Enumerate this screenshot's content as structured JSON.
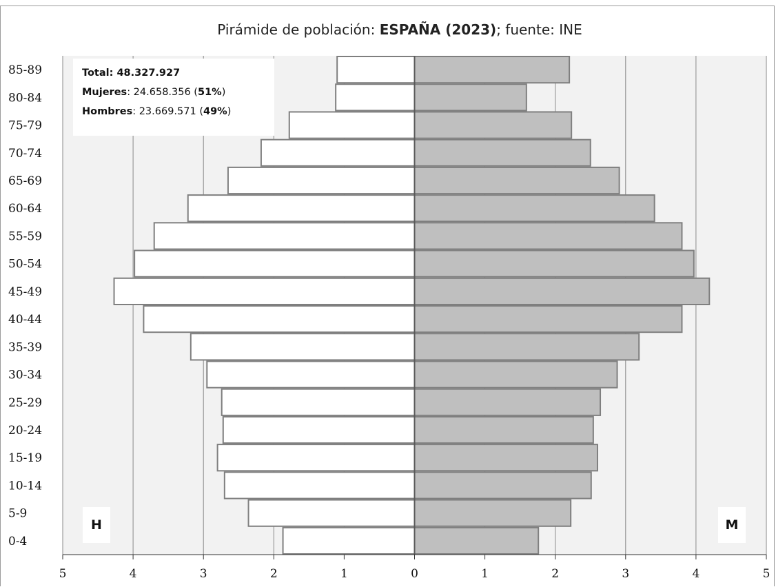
{
  "chart_data": {
    "type": "bar",
    "title": {
      "prefix": "Pirámide de población: ",
      "bold": "ESPAÑA (2023)",
      "suffix": "; fuente: INE"
    },
    "categories": [
      "0-4",
      "5-9",
      "10-14",
      "15-19",
      "20-24",
      "25-29",
      "30-34",
      "35-39",
      "40-44",
      "45-49",
      "50-54",
      "55-59",
      "60-64",
      "65-69",
      "70-74",
      "75-79",
      "80-84",
      "85-89"
    ],
    "series": [
      {
        "name": "H",
        "color": "#ffffff",
        "values": [
          1.87,
          2.36,
          2.7,
          2.8,
          2.72,
          2.74,
          2.95,
          3.18,
          3.85,
          4.27,
          3.98,
          3.7,
          3.22,
          2.65,
          2.18,
          1.78,
          1.12,
          1.1
        ]
      },
      {
        "name": "M",
        "color": "#bfbfbf",
        "values": [
          1.76,
          2.22,
          2.51,
          2.6,
          2.54,
          2.64,
          2.88,
          3.19,
          3.8,
          4.19,
          3.97,
          3.8,
          3.41,
          2.91,
          2.5,
          2.23,
          1.59,
          2.2
        ]
      }
    ],
    "x_ticks": [
      "5",
      "4",
      "3",
      "2",
      "1",
      "0",
      "1",
      "2",
      "3",
      "4",
      "5"
    ],
    "xlim": [
      -5,
      5
    ],
    "grid": true,
    "stats": {
      "total_label": "Total: ",
      "total_value": "48.327.927",
      "women_label": "Mujeres",
      "women_value": ": 24.658.356  (",
      "women_pct": "51%",
      "women_close": ")",
      "men_label": "Hombres",
      "men_value": ": 23.669.571 (",
      "men_pct": "49%",
      "men_close": ")"
    },
    "left_corner_label": "H",
    "right_corner_label": "M",
    "colors": {
      "plot_background": "#f2f2f2",
      "gridline": "#888888",
      "bar_stroke": "#7f7f7f",
      "center_axis": "#595959"
    }
  }
}
